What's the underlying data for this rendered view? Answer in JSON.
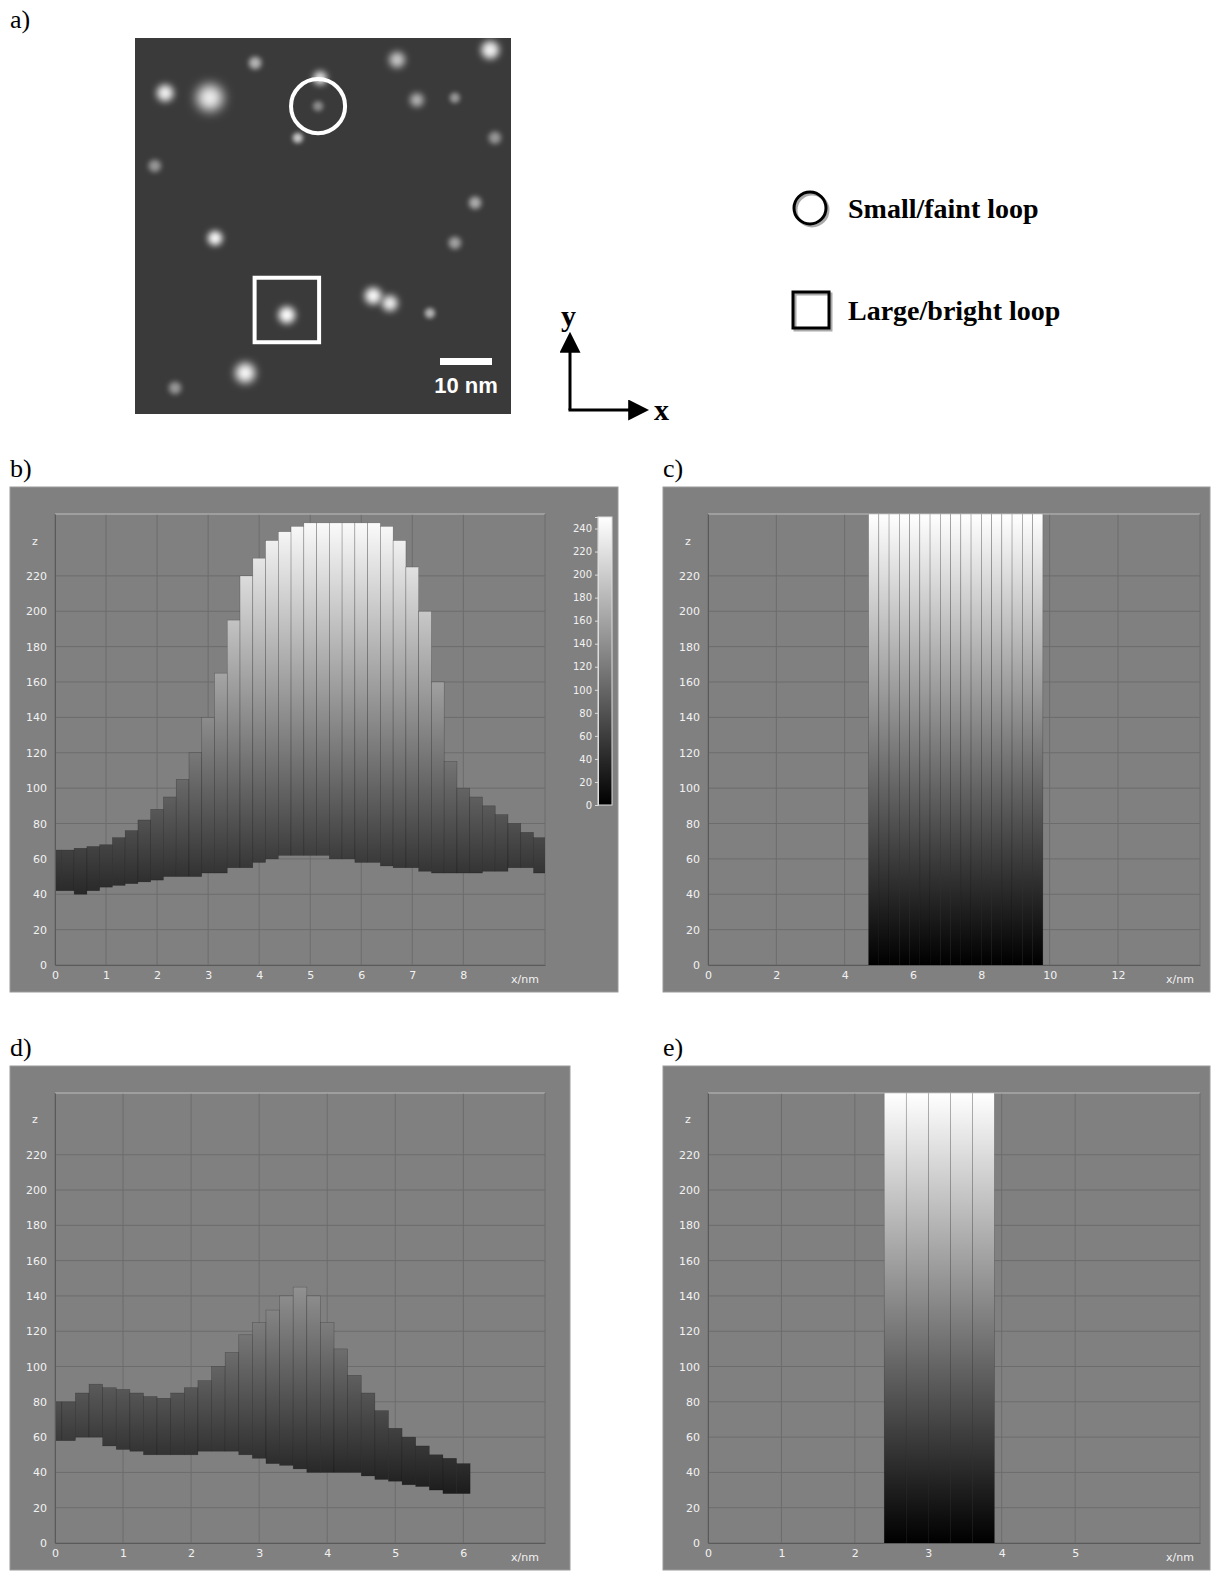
{
  "panel_a": {
    "label": "a)",
    "field_nm": 72.3,
    "spots": [
      [
        5.8,
        10.6,
        1.6,
        240
      ],
      [
        14.4,
        11.5,
        2.5,
        240
      ],
      [
        23.1,
        4.8,
        1.2,
        180
      ],
      [
        35.2,
        13.1,
        1.0,
        140
      ],
      [
        35.6,
        7.7,
        1.3,
        230
      ],
      [
        31.3,
        19.2,
        1.0,
        200
      ],
      [
        50.4,
        4.2,
        1.5,
        200
      ],
      [
        54.2,
        11.9,
        1.3,
        180
      ],
      [
        68.3,
        2.3,
        1.7,
        240
      ],
      [
        15.4,
        38.5,
        1.4,
        250
      ],
      [
        29.2,
        53.3,
        1.6,
        255
      ],
      [
        45.8,
        49.6,
        1.6,
        250
      ],
      [
        49.0,
        51.0,
        1.5,
        240
      ],
      [
        56.7,
        52.9,
        1.0,
        180
      ],
      [
        21.2,
        64.4,
        1.9,
        250
      ],
      [
        61.5,
        39.4,
        1.2,
        160
      ],
      [
        65.4,
        31.7,
        1.2,
        170
      ],
      [
        3.8,
        24.6,
        1.2,
        150
      ],
      [
        61.5,
        11.5,
        1.0,
        150
      ],
      [
        69.2,
        19.2,
        1.2,
        150
      ],
      [
        7.7,
        67.3,
        1.2,
        150
      ]
    ],
    "circle": {
      "x": 35.2,
      "y": 13.1,
      "r": 5.2
    },
    "square": {
      "x": 29.2,
      "y": 52.3,
      "half": 6.2
    },
    "scale_bar": {
      "value": 10,
      "label": "10 nm"
    },
    "axes_labels": {
      "x": "x",
      "y": "y"
    },
    "legend": [
      {
        "marker": "circle",
        "label": "Small/faint loop"
      },
      {
        "marker": "square",
        "label": "Large/bright loop"
      }
    ]
  },
  "chart_data": [
    {
      "type": "bar",
      "label": "b)",
      "x_title": "x/nm",
      "y_title": "z",
      "x": [
        0,
        0.25,
        0.5,
        0.75,
        1,
        1.25,
        1.5,
        1.75,
        2,
        2.25,
        2.5,
        2.75,
        3,
        3.25,
        3.5,
        3.75,
        4,
        4.25,
        4.5,
        4.75,
        5,
        5.25,
        5.5,
        5.75,
        6,
        6.25,
        6.5,
        6.75,
        7,
        7.25,
        7.5,
        7.75,
        8,
        8.25,
        8.5,
        8.75,
        9,
        9.25,
        9.5
      ],
      "values": [
        65,
        65,
        66,
        67,
        68,
        72,
        76,
        82,
        88,
        95,
        105,
        120,
        140,
        165,
        195,
        220,
        230,
        240,
        245,
        248,
        250,
        250,
        250,
        250,
        250,
        250,
        248,
        240,
        225,
        200,
        160,
        115,
        100,
        95,
        90,
        85,
        80,
        75,
        72
      ],
      "base": [
        42,
        42,
        40,
        42,
        44,
        45,
        46,
        47,
        48,
        50,
        50,
        50,
        52,
        52,
        55,
        55,
        58,
        60,
        62,
        62,
        62,
        62,
        60,
        60,
        58,
        58,
        56,
        55,
        55,
        53,
        52,
        52,
        52,
        52,
        53,
        53,
        55,
        55,
        52
      ],
      "xlim": [
        0,
        9.6
      ],
      "xticks": [
        0,
        1,
        2,
        3,
        4,
        5,
        6,
        7,
        8
      ],
      "ylim": [
        0,
        255
      ],
      "yticks": [
        0,
        20,
        40,
        60,
        80,
        100,
        120,
        140,
        160,
        180,
        200,
        220
      ],
      "grid": true,
      "colorbar": {
        "range": [
          0,
          250
        ],
        "ticks": [
          0,
          20,
          40,
          60,
          80,
          100,
          120,
          140,
          160,
          180,
          200,
          220,
          240
        ]
      }
    },
    {
      "type": "bar",
      "label": "c)",
      "x_title": "x/nm",
      "y_title": "z",
      "x": [
        4.85,
        5.15,
        5.45,
        5.75,
        6.05,
        6.35,
        6.65,
        6.95,
        7.25,
        7.55,
        7.85,
        8.15,
        8.45,
        8.75,
        9.05,
        9.35,
        9.65
      ],
      "values": [
        255,
        255,
        255,
        255,
        255,
        255,
        255,
        255,
        255,
        255,
        255,
        255,
        255,
        255,
        255,
        255,
        255
      ],
      "base": [
        0,
        0,
        0,
        0,
        0,
        0,
        0,
        0,
        0,
        0,
        0,
        0,
        0,
        0,
        0,
        0,
        0
      ],
      "xlim": [
        0,
        14.4
      ],
      "xticks": [
        0,
        2,
        4,
        6,
        8,
        10,
        12
      ],
      "ylim": [
        0,
        255
      ],
      "yticks": [
        0,
        20,
        40,
        60,
        80,
        100,
        120,
        140,
        160,
        180,
        200,
        220
      ],
      "grid": true
    },
    {
      "type": "bar",
      "label": "d)",
      "x_title": "x/nm",
      "y_title": "z",
      "x": [
        0,
        0.2,
        0.4,
        0.6,
        0.8,
        1,
        1.2,
        1.4,
        1.6,
        1.8,
        2,
        2.2,
        2.4,
        2.6,
        2.8,
        3,
        3.2,
        3.4,
        3.6,
        3.8,
        4,
        4.2,
        4.4,
        4.6,
        4.8,
        5,
        5.2,
        5.4,
        5.6,
        5.8,
        6
      ],
      "values": [
        80,
        80,
        85,
        90,
        88,
        87,
        85,
        83,
        82,
        85,
        88,
        92,
        100,
        108,
        118,
        125,
        132,
        140,
        145,
        140,
        125,
        110,
        95,
        85,
        75,
        65,
        60,
        55,
        50,
        48,
        45
      ],
      "base": [
        58,
        58,
        60,
        60,
        55,
        53,
        52,
        50,
        50,
        50,
        50,
        52,
        52,
        52,
        50,
        48,
        45,
        44,
        42,
        40,
        40,
        40,
        40,
        38,
        36,
        35,
        33,
        32,
        30,
        28,
        28
      ],
      "xlim": [
        0,
        7.2
      ],
      "xticks": [
        0,
        1,
        2,
        3,
        4,
        5,
        6
      ],
      "ylim": [
        0,
        255
      ],
      "yticks": [
        0,
        20,
        40,
        60,
        80,
        100,
        120,
        140,
        160,
        180,
        200,
        220
      ],
      "grid": true
    },
    {
      "type": "bar",
      "label": "e)",
      "x_title": "x/nm",
      "y_title": "z",
      "x": [
        2.55,
        2.85,
        3.15,
        3.45,
        3.75
      ],
      "values": [
        255,
        255,
        255,
        255,
        255
      ],
      "base": [
        0,
        0,
        0,
        0,
        0
      ],
      "xlim": [
        0,
        6.7
      ],
      "xticks": [
        0,
        1,
        2,
        3,
        4,
        5
      ],
      "ylim": [
        0,
        255
      ],
      "yticks": [
        0,
        20,
        40,
        60,
        80,
        100,
        120,
        140,
        160,
        180,
        200,
        220
      ],
      "grid": true
    }
  ]
}
